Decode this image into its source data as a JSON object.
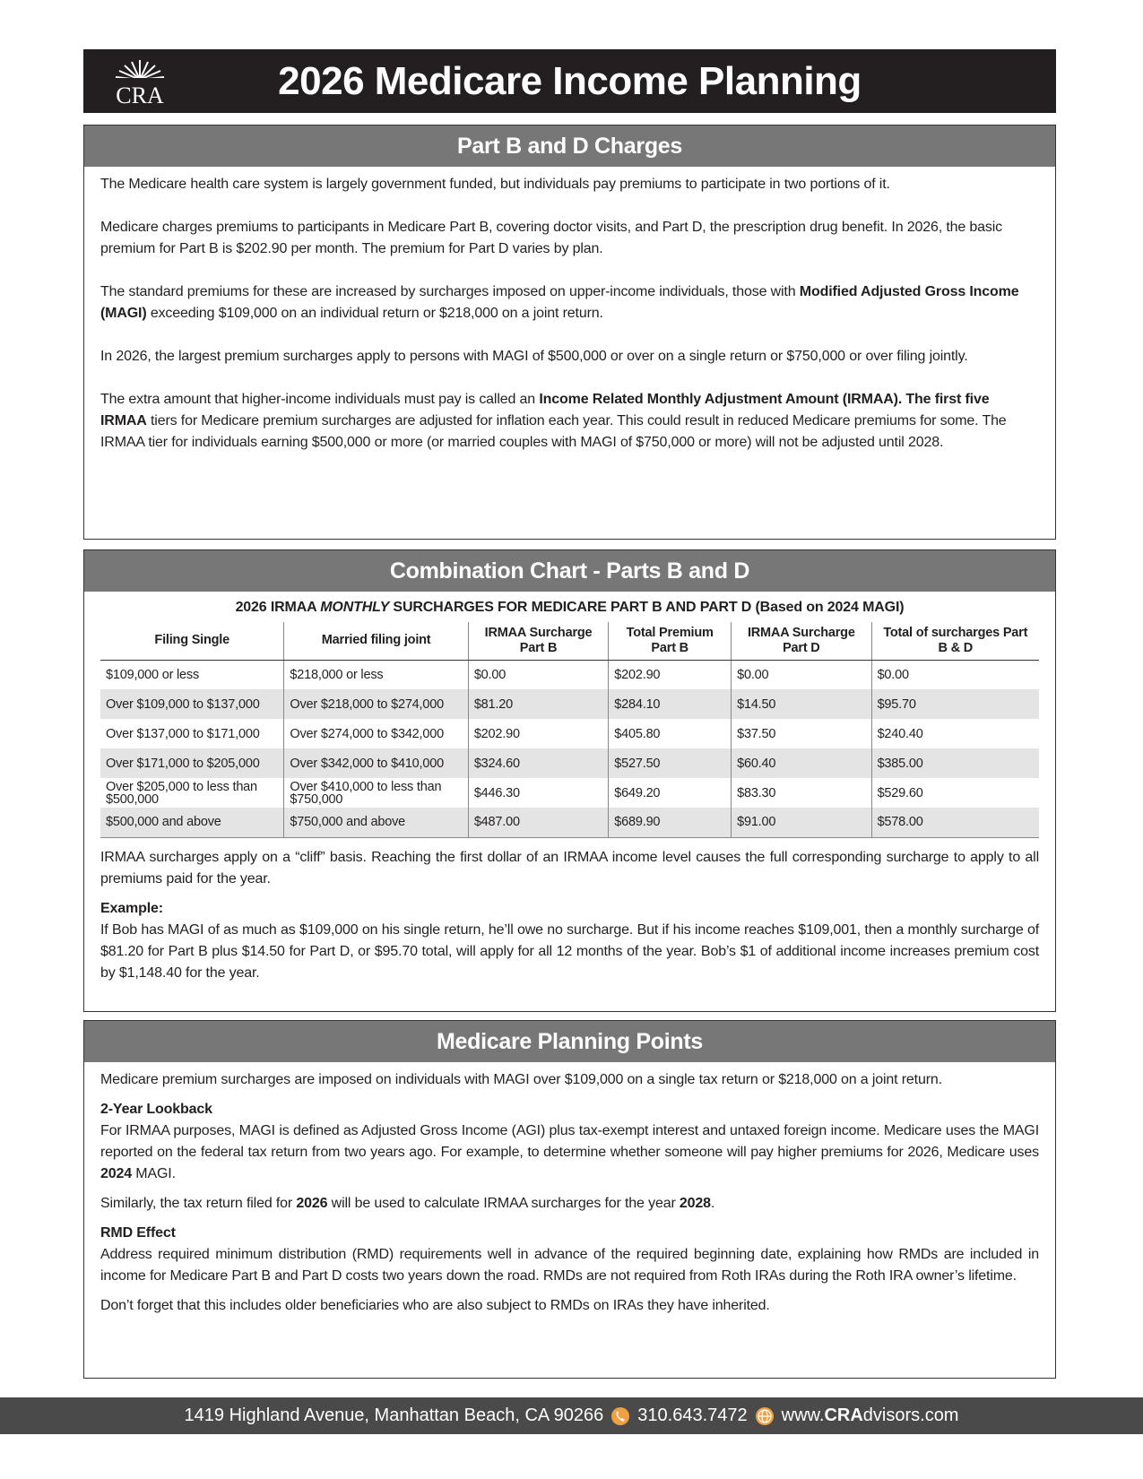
{
  "header": {
    "logo": "CRA",
    "title": "2026 Medicare Income Planning"
  },
  "sections": [
    {
      "title": "Part B and D Charges",
      "paragraphs": [
        {
          "runs": [
            {
              "text": "The Medicare health care system is largely government funded, but individuals pay premiums to participate in two portions of it.",
              "bold": false
            }
          ]
        },
        {
          "runs": [
            {
              "text": "Medicare charges premiums to participants in Medicare Part B, covering doctor visits, and Part D, the prescription drug benefit. In 2026, the basic premium for Part B is $202.90 per month. The premium for Part D varies by plan.",
              "bold": false
            }
          ]
        },
        {
          "runs": [
            {
              "text": "The standard premiums for these are increased by surcharges imposed on upper-income individuals, those with ",
              "bold": false
            },
            {
              "text": "Modified Adjusted Gross Income (MAGI)",
              "bold": true
            },
            {
              "text": " exceeding $109,000 on an individual return or $218,000 on a joint return.",
              "bold": false
            }
          ]
        },
        {
          "runs": [
            {
              "text": "In 2026, the largest premium surcharges apply to persons with MAGI of $500,000 or over on a single return or $750,000 or over filing jointly.",
              "bold": false
            }
          ]
        },
        {
          "runs": [
            {
              "text": "The extra amount that higher-income individuals must pay is called an ",
              "bold": false
            },
            {
              "text": "Income Related Monthly Adjustment Amount (IRMAA). The first five IRMAA",
              "bold": true
            },
            {
              "text": " tiers for Medicare premium surcharges are adjusted for inflation each year. This could result in reduced Medicare premiums for some. The IRMAA tier for individuals earning $500,000 or more (or married couples with MAGI of $750,000 or more) will not be adjusted until 2028.",
              "bold": false
            }
          ]
        }
      ]
    },
    {
      "title": "Combination Chart - Parts B and D",
      "table": {
        "caption": [
          {
            "text": "2026 IRMAA ",
            "italic": false
          },
          {
            "text": "MONTHLY",
            "italic": true
          },
          {
            "text": " SURCHARGES FOR MEDICARE PART B AND PART D (Based on 2024 MAGI)",
            "italic": false
          }
        ],
        "headers": [
          "Filing Single",
          "Married filing joint",
          "IRMAA Surcharge Part B",
          "Total Premium Part B",
          "IRMAA Surcharge Part D",
          "Total of surcharges Part B & D"
        ],
        "rows": [
          [
            "$109,000 or less",
            "$218,000 or less",
            "$0.00",
            "$202.90",
            "$0.00",
            "$0.00"
          ],
          [
            "Over $109,000 to $137,000",
            "Over $218,000 to $274,000",
            "$81.20",
            "$284.10",
            "$14.50",
            "$95.70"
          ],
          [
            "Over $137,000 to $171,000",
            "Over $274,000 to $342,000",
            "$202.90",
            "$405.80",
            "$37.50",
            "$240.40"
          ],
          [
            "Over $171,000 to $205,000",
            "Over $342,000 to $410,000",
            "$324.60",
            "$527.50",
            "$60.40",
            "$385.00"
          ],
          [
            "Over $205,000 to less than $500,000",
            "Over $410,000 to less than $750,000",
            "$446.30",
            "$649.20",
            "$83.30",
            "$529.60"
          ],
          [
            "$500,000 and above",
            "$750,000 and above",
            "$487.00",
            "$689.90",
            "$91.00",
            "$578.00"
          ]
        ]
      },
      "paragraphs": [
        {
          "runs": [
            {
              "text": "IRMAA surcharges apply on a “cliff” basis. Reaching the first dollar of an IRMAA income level causes the full corresponding surcharge to apply to all premiums paid for the year.",
              "bold": false
            }
          ]
        },
        {
          "heading": "Example:",
          "runs": [
            {
              "text": "If Bob has MAGI of as much as $109,000 on his single return, he’ll owe no surcharge. But if his income reaches $109,001, then a monthly surcharge of $81.20 for Part B plus $14.50 for Part D, or $95.70 total, will apply for all 12 months of the year. Bob’s $1 of additional income increases premium cost by $1,148.40 for the year.",
              "bold": false
            }
          ]
        }
      ]
    },
    {
      "title": "Medicare Planning Points",
      "paragraphs": [
        {
          "runs": [
            {
              "text": "Medicare premium surcharges are imposed on individuals with MAGI over $109,000 on a single tax return or $218,000 on a joint return.",
              "bold": false
            }
          ]
        },
        {
          "heading": "2-Year Lookback",
          "runs": [
            {
              "text": "For IRMAA purposes, MAGI is defined as Adjusted Gross Income (AGI) plus tax-exempt interest and untaxed foreign income. Medicare uses the MAGI reported on the federal tax return from two years ago. For example, to determine whether someone will pay higher premiums for 2026, Medicare uses ",
              "bold": false
            },
            {
              "text": "2024",
              "bold": true
            },
            {
              "text": " MAGI.",
              "bold": false
            }
          ]
        },
        {
          "runs": [
            {
              "text": "Similarly, the tax return filed for ",
              "bold": false
            },
            {
              "text": "2026",
              "bold": true
            },
            {
              "text": " will be used to calculate IRMAA surcharges for the year ",
              "bold": false
            },
            {
              "text": "2028",
              "bold": true
            },
            {
              "text": ".",
              "bold": false
            }
          ]
        },
        {
          "heading": "RMD Effect",
          "runs": [
            {
              "text": "Address required minimum distribution (RMD) requirements well in advance of the required beginning date, explaining how RMDs are included in income for Medicare Part B and Part D costs two years down the road. RMDs are not required from Roth IRAs during the Roth IRA owner’s lifetime.",
              "bold": false
            }
          ]
        },
        {
          "runs": [
            {
              "text": "Don’t forget that this includes older beneficiaries who are also subject to RMDs on IRAs they have inherited.",
              "bold": false
            }
          ]
        }
      ]
    }
  ],
  "footer": {
    "address": "1419 Highland Avenue, Manhattan Beach, CA 90266",
    "phone": "310.643.7472",
    "website": [
      {
        "text": "www.",
        "bold": false
      },
      {
        "text": "CRA",
        "bold": true
      },
      {
        "text": "dvisors.com",
        "bold": false
      }
    ]
  }
}
